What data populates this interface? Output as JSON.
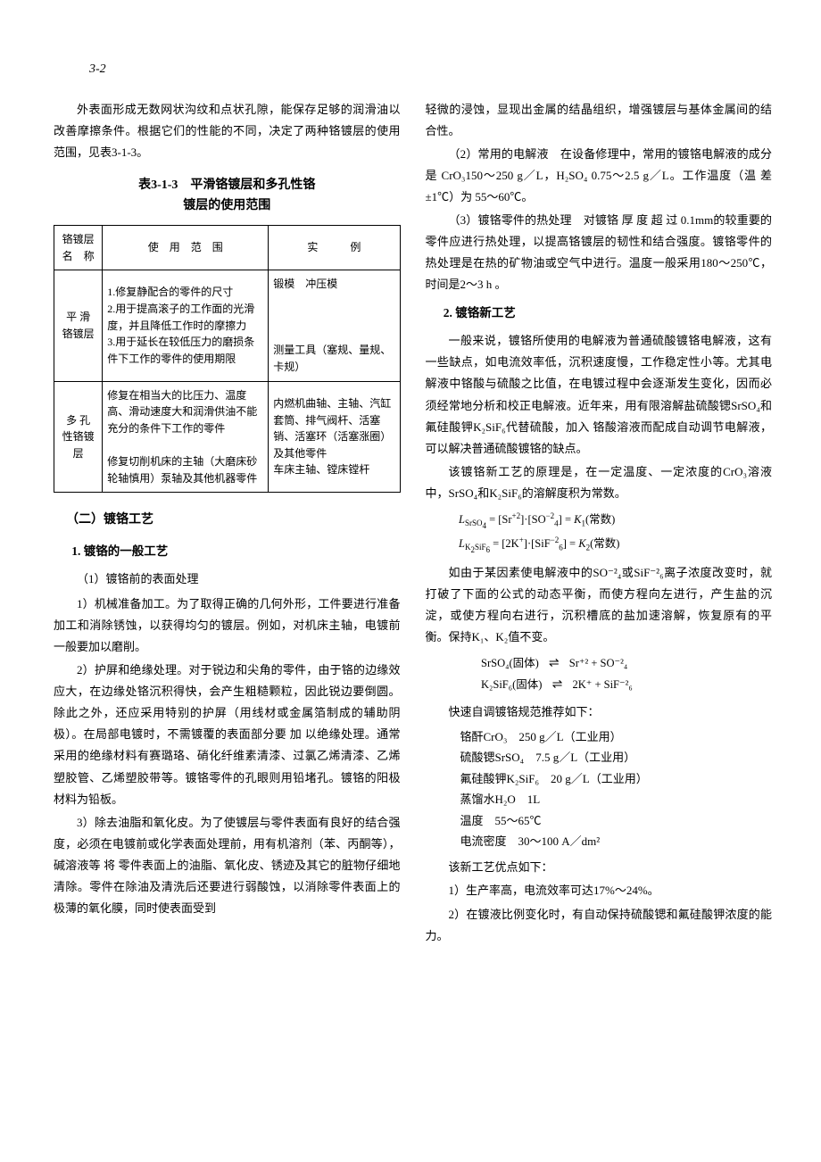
{
  "page_number": "3-2",
  "left": {
    "intro": "外表面形成无数网状沟纹和点状孔隙，能保存足够的润滑油以改善摩擦条件。根据它们的性能的不同，决定了两种铬镀层的使用范围，见表3-1-3。",
    "table_title": "表3-1-3　平滑铬镀层和多孔性铬\n镀层的使用范围",
    "table": {
      "headers": [
        "铬镀层\n名　称",
        "使　用　范　围",
        "实　　　例"
      ],
      "rows": [
        {
          "name": "平 滑\n铬镀层",
          "use": "1.修复静配合的零件的尺寸\n2.用于提高滚子的工作面的光滑度，并且降低工作时的摩擦力\n3.用于延长在较低压力的磨损条件下工作的零件的使用期限",
          "ex": "锻模　冲压模\n\n\n\n测量工具（塞规、量规、卡规）"
        },
        {
          "name": "多 孔\n性铬镀\n层",
          "use": "修复在相当大的比压力、温度高、滑动速度大和润滑供油不能充分的条件下工作的零件\n\n修复切削机床的主轴（大磨床砂轮轴慎用）泵轴及其他机器零件",
          "ex": "内燃机曲轴、主轴、汽缸套筒、排气阀杆、活塞销、活塞环（活塞涨圈）及其他零件\n车床主轴、镗床镗杆"
        }
      ]
    },
    "h2": "（二）镀铬工艺",
    "h3_1": "1. 镀铬的一般工艺",
    "h4_1": "（1）镀铬前的表面处理",
    "p1": "1）机械准备加工。为了取得正确的几何外形，工件要进行准备加工和消除锈蚀，以获得均匀的镀层。例如，对机床主轴，电镀前一般要加以磨削。",
    "p2": "2）护屏和绝缘处理。对于锐边和尖角的零件，由于铬的边缘效应大，在边缘处铬沉积得快，会产生粗糙颗粒，因此锐边要倒圆。除此之外，还应采用特别的护屏（用线材或金属箔制成的辅助阴极）。在局部电镀时，不需镀覆的表面部分要 加 以绝缘处理。通常采用的绝缘材料有赛璐珞、硝化纤维素清漆、过氯乙烯清漆、乙烯塑胶管、乙烯塑胶带等。镀铬零件的孔眼则用铅堵孔。镀铬的阳极材料为铅板。",
    "p3": "3）除去油脂和氧化皮。为了使镀层与零件表面有良好的结合强度，必须在电镀前或化学表面处理前，用有机溶剂（苯、丙酮等），碱溶液等 将 零件表面上的油脂、氧化皮、锈迹及其它的脏物仔细地清除。零件在除油及清洗后还要进行弱酸蚀，以消除零件表面上的极薄的氧化膜，同时使表面受到"
  },
  "right": {
    "p_top": "轻微的浸蚀，显现出金属的结晶组织，增强镀层与基体金属间的结合性。",
    "p_sol_label": "（2）常用的电解液",
    "p_sol": "在设备修理中，常用的镀铬电解液的成分 是 CrO₃150～250 g／L，H₂SO₄ 0.75～2.5 g／L。工作温度（温 差±1℃）为 55～60℃。",
    "p_heat_label": "（3）镀铬零件的热处理",
    "p_heat": "对镀铬 厚 度 超 过 0.1mm的较重要的零件应进行热处理，以提高铬镀层的韧性和结合强度。镀铬零件的热处理是在热的矿物油或空气中进行。温度一般采用180～250℃，时间是2～3 h 。",
    "h3_2": "2. 镀铬新工艺",
    "p_new1": "一般来说，镀铬所使用的电解液为普通硫酸镀铬电解液，这有一些缺点，如电流效率低，沉积速度慢，工作稳定性小等。尤其电解液中铬酸与硫酸之比值，在电镀过程中会逐渐发生变化，因而必须经常地分析和校正电解液。近年来，用有限溶解盐硫酸锶SrSO₄和氟硅酸钾K₂SiF₆代替硫酸，加入 铬酸溶液而配成自动调节电解液，可以解决普通硫酸镀铬的缺点。",
    "p_new2": "该镀铬新工艺的原理是，在一定温度、一定浓度的CrO₃溶液中，SrSO₄和K₂SiF₆的溶解度积为常数。",
    "formula1": "LSrSO₄ = [Sr⁺²]·[SO⁻²₄] = K₁(常数)",
    "formula2": "LK₂SiF₆ = [2K⁺]·[SiF⁻²₆] = K₂(常数)",
    "p_new3": "如由于某因素使电解液中的SO⁻²₄或SiF⁻²₆离子浓度改变时，就打破了下面的公式的动态平衡，而使方程向左进行，产生盐的沉淀，或使方程向右进行，沉积槽底的盐加速溶解，恢复原有的平衡。保持K₁、K₂值不变。",
    "react1_left": "SrSO₄(固体)",
    "react1_right": "Sr⁺² + SO⁻²₄",
    "react2_left": "K₂SiF₆(固体)",
    "react2_right": "2K⁺ + SiF⁻²₆",
    "spec_title": "快速自调镀铬规范推荐如下：",
    "spec": [
      "铬酐CrO₃　250 g／L（工业用）",
      "硫酸锶SrSO₄　7.5 g／L（工业用）",
      "氟硅酸钾K₂SiF₆　20 g／L（工业用）",
      "蒸馏水H₂O　1L",
      "温度　55～65℃",
      "电流密度　30～100 A／dm²"
    ],
    "adv_title": "该新工艺优点如下：",
    "adv1": "1）生产率高，电流效率可达17%～24%。",
    "adv2": "2）在镀液比例变化时，有自动保持硫酸锶和氟硅酸钾浓度的能力。"
  }
}
